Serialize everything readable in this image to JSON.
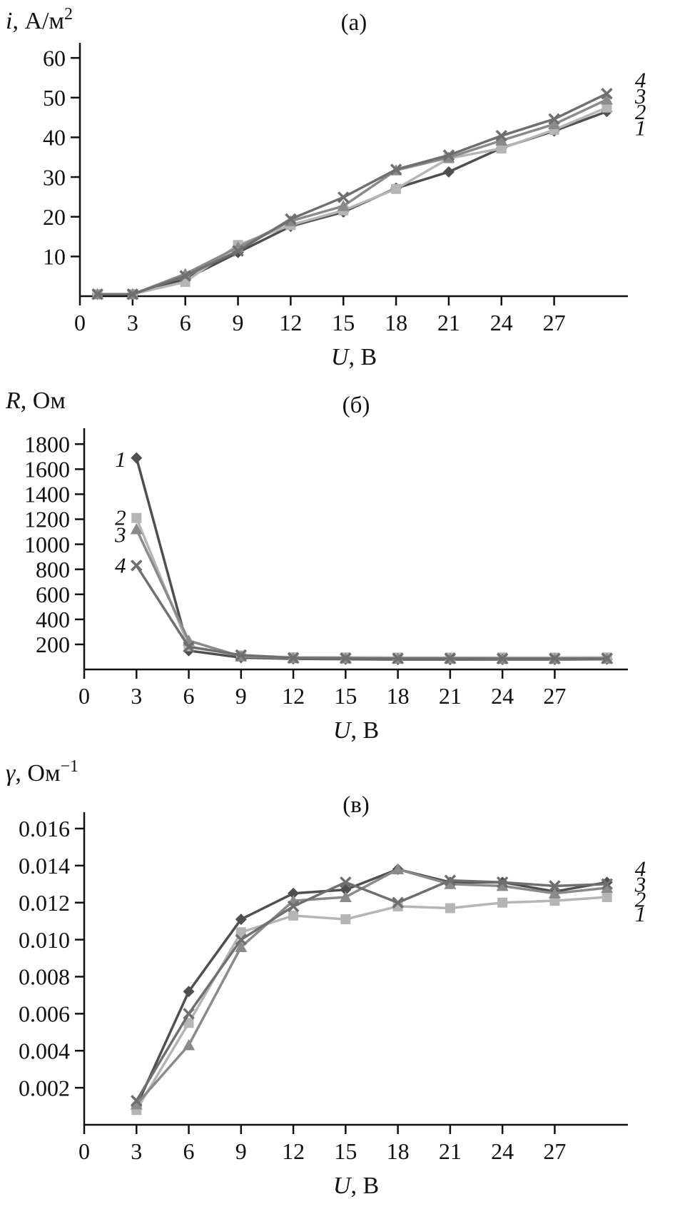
{
  "figure": {
    "background": "#ffffff",
    "axis_color": "#111111"
  },
  "chart_data": [
    {
      "type": "line",
      "panel_label": "(а)",
      "ylabel": {
        "variable": "i",
        "rest": ", А/м",
        "superscript": "2"
      },
      "xlabel": {
        "variable": "U",
        "rest": ", В"
      },
      "xlim": [
        0,
        31.2
      ],
      "ylim": [
        0,
        62
      ],
      "xticks": [
        0,
        3,
        6,
        9,
        12,
        15,
        18,
        21,
        24,
        27
      ],
      "xtick_labels": [
        "0",
        "3",
        "6",
        "9",
        "12",
        "15",
        "18",
        "21",
        "24",
        "27"
      ],
      "yticks": [
        10,
        20,
        30,
        40,
        50,
        60
      ],
      "ytick_labels": [
        "10",
        "20",
        "30",
        "40",
        "50",
        "60"
      ],
      "x": [
        1,
        3,
        6,
        9,
        12,
        15,
        18,
        21,
        24,
        27,
        30
      ],
      "series": [
        {
          "name": "1",
          "marker": "diamond",
          "color": "#4f4f4f",
          "values": [
            0.5,
            0.5,
            4.3,
            11,
            17.6,
            21.2,
            27.2,
            31.3,
            37.3,
            41.6,
            46.5
          ],
          "label_pos": {
            "x": 31.6,
            "y": 42.5
          },
          "label_anchor": "start"
        },
        {
          "name": "2",
          "marker": "square",
          "color": "#b5b5b5",
          "values": [
            0.5,
            0.5,
            3.6,
            12.9,
            17.9,
            21.6,
            27.0,
            34.7,
            37.2,
            41.9,
            47.5
          ],
          "label_pos": {
            "x": 31.6,
            "y": 46.5
          },
          "label_anchor": "start"
        },
        {
          "name": "3",
          "marker": "triangle",
          "color": "#8a8a8a",
          "values": [
            0.5,
            0.5,
            5.6,
            12.3,
            18.9,
            22.7,
            31.7,
            34.9,
            39.2,
            43.3,
            49.5
          ],
          "label_pos": {
            "x": 31.6,
            "y": 50.5
          },
          "label_anchor": "start"
        },
        {
          "name": "4",
          "marker": "x",
          "color": "#6f6f6f",
          "values": [
            0.5,
            0.5,
            5.1,
            11.4,
            19.4,
            24.9,
            31.9,
            35.5,
            40.4,
            44.6,
            51.0
          ],
          "label_pos": {
            "x": 31.6,
            "y": 54.5
          },
          "label_anchor": "start"
        }
      ]
    },
    {
      "type": "line",
      "panel_label": "(б)",
      "ylabel": {
        "variable": "R",
        "rest": ", Ом",
        "superscript": ""
      },
      "xlabel": {
        "variable": "U",
        "rest": ", В"
      },
      "xlim": [
        0,
        31.2
      ],
      "ylim": [
        0,
        1870
      ],
      "xticks": [
        0,
        3,
        6,
        9,
        12,
        15,
        18,
        21,
        24,
        27
      ],
      "xtick_labels": [
        "0",
        "3",
        "6",
        "9",
        "12",
        "15",
        "18",
        "21",
        "24",
        "27"
      ],
      "yticks": [
        200,
        400,
        600,
        800,
        1000,
        1200,
        1400,
        1600,
        1800
      ],
      "ytick_labels": [
        "200",
        "400",
        "600",
        "800",
        "1000",
        "1200",
        "1400",
        "1600",
        "1800"
      ],
      "x": [
        3,
        6,
        9,
        12,
        15,
        18,
        21,
        24,
        27,
        30
      ],
      "series": [
        {
          "name": "1",
          "marker": "diamond",
          "color": "#4f4f4f",
          "values": [
            1690,
            150,
            95,
            85,
            82,
            80,
            80,
            80,
            80,
            82
          ],
          "label_pos": {
            "x": 2.4,
            "y": 1680
          },
          "label_anchor": "end"
        },
        {
          "name": "2",
          "marker": "square",
          "color": "#b5b5b5",
          "values": [
            1210,
            185,
            112,
            97,
            96,
            95,
            95,
            95,
            95,
            96
          ],
          "label_pos": {
            "x": 2.4,
            "y": 1215
          },
          "label_anchor": "end"
        },
        {
          "name": "3",
          "marker": "triangle",
          "color": "#8a8a8a",
          "values": [
            1120,
            230,
            104,
            90,
            88,
            86,
            86,
            85,
            85,
            86
          ],
          "label_pos": {
            "x": 2.4,
            "y": 1080
          },
          "label_anchor": "end"
        },
        {
          "name": "4",
          "marker": "x",
          "color": "#6f6f6f",
          "values": [
            830,
            180,
            115,
            92,
            90,
            88,
            88,
            87,
            87,
            88
          ],
          "label_pos": {
            "x": 2.4,
            "y": 835
          },
          "label_anchor": "end"
        }
      ]
    },
    {
      "type": "line",
      "panel_label": "(в)",
      "ylabel": {
        "variable": "γ",
        "rest": ", Ом",
        "superscript": "−1"
      },
      "xlabel": {
        "variable": "U",
        "rest": ", В"
      },
      "xlim": [
        0,
        31.2
      ],
      "ylim": [
        0,
        0.0165
      ],
      "xticks": [
        0,
        3,
        6,
        9,
        12,
        15,
        18,
        21,
        24,
        27
      ],
      "xtick_labels": [
        "0",
        "3",
        "6",
        "9",
        "12",
        "15",
        "18",
        "21",
        "24",
        "27"
      ],
      "yticks": [
        0.002,
        0.004,
        0.006,
        0.008,
        0.01,
        0.012,
        0.014,
        0.016
      ],
      "ytick_labels": [
        "0.002",
        "0.004",
        "0.006",
        "0.008",
        "0.010",
        "0.012",
        "0.014",
        "0.016"
      ],
      "x": [
        3,
        6,
        9,
        12,
        15,
        18,
        21,
        24,
        27,
        30
      ],
      "series": [
        {
          "name": "1",
          "marker": "diamond",
          "color": "#4f4f4f",
          "values": [
            0.001,
            0.0072,
            0.0111,
            0.0125,
            0.0127,
            0.0138,
            0.0131,
            0.0131,
            0.0126,
            0.0131
          ],
          "label_pos": {
            "x": 31.6,
            "y": 0.0114
          },
          "label_anchor": "start"
        },
        {
          "name": "2",
          "marker": "square",
          "color": "#b5b5b5",
          "values": [
            0.0008,
            0.0055,
            0.0104,
            0.0113,
            0.0111,
            0.0118,
            0.0117,
            0.012,
            0.0121,
            0.0123
          ],
          "label_pos": {
            "x": 31.6,
            "y": 0.0122
          },
          "label_anchor": "start"
        },
        {
          "name": "3",
          "marker": "triangle",
          "color": "#8a8a8a",
          "values": [
            0.0011,
            0.0043,
            0.0096,
            0.0121,
            0.0123,
            0.0138,
            0.013,
            0.0129,
            0.0125,
            0.0128
          ],
          "label_pos": {
            "x": 31.6,
            "y": 0.013
          },
          "label_anchor": "start"
        },
        {
          "name": "4",
          "marker": "x",
          "color": "#6f6f6f",
          "values": [
            0.0013,
            0.006,
            0.01,
            0.0118,
            0.0131,
            0.012,
            0.0132,
            0.0131,
            0.0129,
            0.013
          ],
          "label_pos": {
            "x": 31.6,
            "y": 0.01385
          },
          "label_anchor": "start"
        }
      ]
    }
  ]
}
